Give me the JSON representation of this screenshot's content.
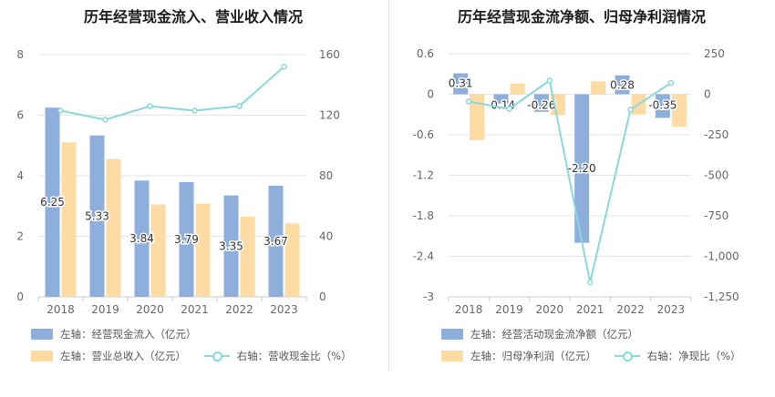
{
  "left": {
    "title": "历年经营现金流入、营业收入情况",
    "legend": [
      {
        "label": "左轴：经营现金流入（亿元）",
        "color": "#8eaedc",
        "kind": "bar"
      },
      {
        "label": "左轴：营业总收入（亿元）",
        "color": "#fddba3",
        "kind": "bar"
      },
      {
        "label": "右轴：营收现金比（%）",
        "color": "#8ad8dc",
        "kind": "line"
      }
    ]
  },
  "right": {
    "title": "历年经营现金流净额、归母净利润情况",
    "legend": [
      {
        "label": "左轴：经营活动现金流净额（亿元）",
        "color": "#8eaedc",
        "kind": "bar"
      },
      {
        "label": "左轴：归母净利润（亿元）",
        "color": "#fddba3",
        "kind": "bar"
      },
      {
        "label": "右轴：净现比（%）",
        "color": "#8ad8dc",
        "kind": "line"
      }
    ]
  },
  "chart_data": [
    {
      "type": "bar",
      "title": "历年经营现金流入、营业收入情况",
      "categories": [
        "2018",
        "2019",
        "2020",
        "2021",
        "2022",
        "2023"
      ],
      "series": [
        {
          "name": "左轴：经营现金流入（亿元）",
          "axis": "left",
          "color": "#8eaedc",
          "values": [
            6.25,
            5.33,
            3.84,
            3.79,
            3.35,
            3.67
          ],
          "labels": [
            "6.25",
            "5.33",
            "3.84",
            "3.79",
            "3.35",
            "3.67"
          ]
        },
        {
          "name": "左轴：营业总收入（亿元）",
          "axis": "left",
          "color": "#fddba3",
          "values": [
            5.1,
            4.55,
            3.05,
            3.08,
            2.65,
            2.42
          ]
        },
        {
          "name": "右轴：营收现金比（%）",
          "axis": "right",
          "type": "line",
          "color": "#8ad8dc",
          "values": [
            123,
            117,
            126,
            123,
            126,
            152
          ]
        }
      ],
      "ylim": [
        0,
        8
      ],
      "yticks": [
        "0",
        "2",
        "4",
        "6",
        "8"
      ],
      "ytick_values": [
        0,
        2,
        4,
        6,
        8
      ],
      "y2lim": [
        0,
        160
      ],
      "y2ticks": [
        "0",
        "40",
        "80",
        "120",
        "160"
      ],
      "y2tick_values": [
        0,
        40,
        80,
        120,
        160
      ],
      "grid": true
    },
    {
      "type": "bar",
      "title": "历年经营现金流净额、归母净利润情况",
      "categories": [
        "2018",
        "2019",
        "2020",
        "2021",
        "2022",
        "2023"
      ],
      "series": [
        {
          "name": "左轴：经营活动现金流净额（亿元）",
          "axis": "left",
          "color": "#8eaedc",
          "values": [
            0.31,
            -0.14,
            -0.26,
            -2.2,
            0.28,
            -0.35
          ],
          "labels": [
            "0.31",
            "-0.14",
            "-0.26",
            "-2.20",
            "0.28",
            "-0.35"
          ]
        },
        {
          "name": "左轴：归母净利润（亿元）",
          "axis": "left",
          "color": "#fddba3",
          "values": [
            -0.68,
            0.16,
            -0.31,
            0.19,
            -0.3,
            -0.48
          ]
        },
        {
          "name": "右轴：净现比（%）",
          "axis": "right",
          "type": "line",
          "color": "#8ad8dc",
          "values": [
            -45,
            -90,
            85,
            -1160,
            -95,
            70
          ]
        }
      ],
      "ylim": [
        -3,
        0.6
      ],
      "yticks": [
        "0.6",
        "0",
        "-0.6",
        "-1.2",
        "-1.8",
        "-2.4",
        "-3"
      ],
      "ytick_values": [
        0.6,
        0,
        -0.6,
        -1.2,
        -1.8,
        -2.4,
        -3
      ],
      "y2lim": [
        -1250,
        250
      ],
      "y2ticks": [
        "250",
        "0",
        "-250",
        "-500",
        "-750",
        "-1,000",
        "-1,250"
      ],
      "y2tick_values": [
        250,
        0,
        -250,
        -500,
        -750,
        -1000,
        -1250
      ],
      "grid": true
    }
  ]
}
